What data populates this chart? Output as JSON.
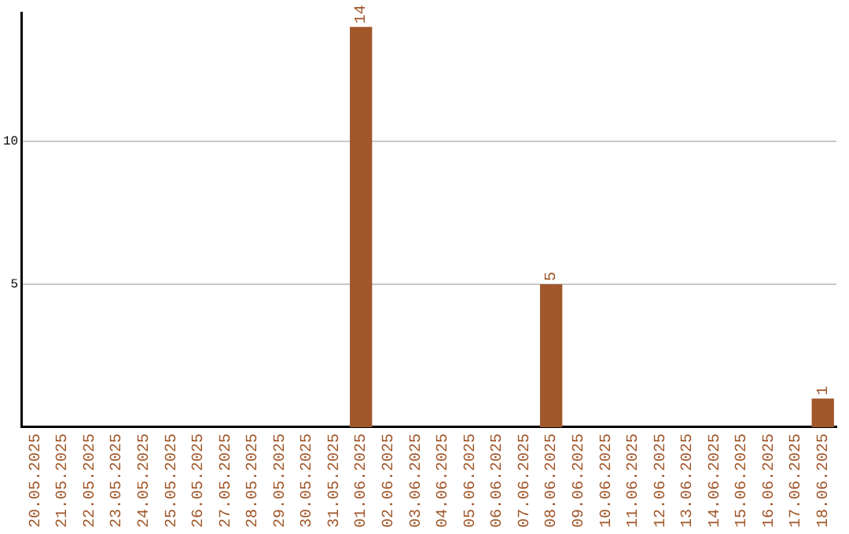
{
  "chart_data": {
    "type": "bar",
    "categories": [
      "20.05.2025",
      "21.05.2025",
      "22.05.2025",
      "23.05.2025",
      "24.05.2025",
      "25.05.2025",
      "26.05.2025",
      "27.05.2025",
      "28.05.2025",
      "29.05.2025",
      "30.05.2025",
      "31.05.2025",
      "01.06.2025",
      "02.06.2025",
      "03.06.2025",
      "04.06.2025",
      "05.06.2025",
      "06.06.2025",
      "07.06.2025",
      "08.06.2025",
      "09.06.2025",
      "10.06.2025",
      "11.06.2025",
      "12.06.2025",
      "13.06.2025",
      "14.06.2025",
      "15.06.2025",
      "16.06.2025",
      "17.06.2025",
      "18.06.2025"
    ],
    "values": [
      0,
      0,
      0,
      0,
      0,
      0,
      0,
      0,
      0,
      0,
      0,
      0,
      14,
      0,
      0,
      0,
      0,
      0,
      0,
      5,
      0,
      0,
      0,
      0,
      0,
      0,
      0,
      0,
      0,
      1
    ],
    "value_labels": [
      null,
      null,
      null,
      null,
      null,
      null,
      null,
      null,
      null,
      null,
      null,
      null,
      "14",
      null,
      null,
      null,
      null,
      null,
      null,
      "5",
      null,
      null,
      null,
      null,
      null,
      null,
      null,
      null,
      null,
      "1"
    ],
    "color": "#a0572a",
    "ylim": [
      0,
      14.5
    ],
    "yticks": [
      5,
      10
    ],
    "grid": "y",
    "legend": false
  }
}
